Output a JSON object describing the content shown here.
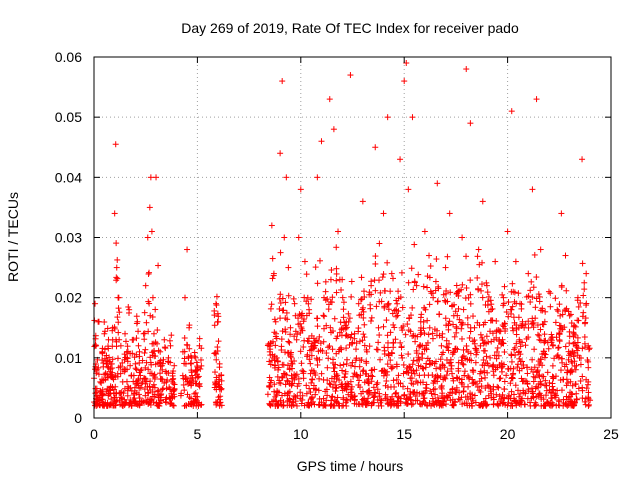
{
  "chart_data": {
    "type": "scatter",
    "title": "Day 269 of 2019, Rate Of TEC Index for receiver pado",
    "xlabel": "GPS time / hours",
    "ylabel": "ROTI / TECUs",
    "xlim": [
      0,
      25
    ],
    "ylim": [
      0,
      0.06
    ],
    "xticks": [
      0,
      5,
      10,
      15,
      20,
      25
    ],
    "yticks": [
      0,
      0.01,
      0.02,
      0.03,
      0.04,
      0.05,
      0.06
    ],
    "xtick_labels": [
      "0",
      "5",
      "10",
      "15",
      "20",
      "25"
    ],
    "ytick_labels": [
      "0",
      "0.01",
      "0.02",
      "0.03",
      "0.04",
      "0.05",
      "0.06"
    ],
    "grid": true,
    "marker": "plus",
    "color": "#ff0000",
    "data_gaps": [
      [
        3.9,
        4.2
      ],
      [
        5.2,
        5.8
      ],
      [
        6.2,
        8.4
      ]
    ],
    "series": [
      {
        "x": [
          0.05,
          0.1,
          0.15,
          0.2,
          0.3,
          0.4,
          0.5,
          0.6,
          0.7,
          0.8,
          0.9,
          1.0,
          1.05,
          1.1,
          1.2,
          1.3,
          1.4,
          1.5,
          1.6,
          1.7,
          1.8,
          1.9,
          2.0,
          2.1,
          2.2,
          2.3,
          2.4,
          2.5,
          2.6,
          2.7,
          2.75,
          2.8,
          2.85,
          2.9,
          3.0,
          3.2,
          3.3,
          3.4,
          3.5,
          3.6,
          3.7,
          3.8,
          4.3,
          4.4,
          4.5,
          4.6,
          4.7,
          4.8,
          4.9,
          5.0,
          5.1,
          5.9,
          6.0,
          6.05,
          8.5,
          8.6,
          8.7,
          8.8,
          8.9,
          9.0,
          9.1,
          9.2,
          9.3,
          9.4,
          9.5,
          9.6,
          9.7,
          9.8,
          9.9,
          10.0,
          10.2,
          10.4,
          10.6,
          10.8,
          11.0,
          11.2,
          11.4,
          11.6,
          11.8,
          12.0,
          12.2,
          12.4,
          12.6,
          12.8,
          13.0,
          13.2,
          13.4,
          13.6,
          13.8,
          14.0,
          14.2,
          14.4,
          14.6,
          14.8,
          15.0,
          15.1,
          15.2,
          15.4,
          15.6,
          15.8,
          16.0,
          16.2,
          16.4,
          16.6,
          16.8,
          17.0,
          17.2,
          17.4,
          17.6,
          17.8,
          18.0,
          18.2,
          18.4,
          18.6,
          18.8,
          19.0,
          19.2,
          19.4,
          19.6,
          19.8,
          20.0,
          20.2,
          20.4,
          20.6,
          20.8,
          21.0,
          21.2,
          21.4,
          21.6,
          21.8,
          22.0,
          22.2,
          22.4,
          22.6,
          22.8,
          23.0,
          23.2,
          23.4,
          23.6,
          23.8,
          23.9
        ],
        "y": [
          0.019,
          0.012,
          0.008,
          0.016,
          0.006,
          0.011,
          0.014,
          0.009,
          0.013,
          0.007,
          0.015,
          0.034,
          0.0455,
          0.025,
          0.02,
          0.012,
          0.008,
          0.014,
          0.01,
          0.018,
          0.007,
          0.013,
          0.009,
          0.016,
          0.011,
          0.008,
          0.014,
          0.022,
          0.03,
          0.035,
          0.04,
          0.031,
          0.02,
          0.014,
          0.04,
          0.011,
          0.008,
          0.013,
          0.006,
          0.01,
          0.012,
          0.007,
          0.011,
          0.02,
          0.028,
          0.015,
          0.009,
          0.006,
          0.01,
          0.008,
          0.012,
          0.019,
          0.016,
          0.007,
          0.011,
          0.032,
          0.024,
          0.014,
          0.008,
          0.044,
          0.056,
          0.03,
          0.04,
          0.025,
          0.015,
          0.009,
          0.019,
          0.013,
          0.03,
          0.038,
          0.026,
          0.018,
          0.012,
          0.04,
          0.046,
          0.021,
          0.053,
          0.048,
          0.031,
          0.023,
          0.016,
          0.057,
          0.014,
          0.019,
          0.036,
          0.011,
          0.022,
          0.045,
          0.029,
          0.034,
          0.05,
          0.024,
          0.018,
          0.043,
          0.056,
          0.059,
          0.038,
          0.05,
          0.022,
          0.016,
          0.031,
          0.027,
          0.02,
          0.039,
          0.012,
          0.025,
          0.034,
          0.017,
          0.021,
          0.03,
          0.058,
          0.049,
          0.015,
          0.028,
          0.036,
          0.022,
          0.018,
          0.026,
          0.013,
          0.02,
          0.031,
          0.051,
          0.026,
          0.019,
          0.015,
          0.024,
          0.038,
          0.053,
          0.028,
          0.016,
          0.021,
          0.012,
          0.018,
          0.034,
          0.027,
          0.017,
          0.014,
          0.02,
          0.043,
          0.024,
          0.012
        ]
      }
    ]
  }
}
